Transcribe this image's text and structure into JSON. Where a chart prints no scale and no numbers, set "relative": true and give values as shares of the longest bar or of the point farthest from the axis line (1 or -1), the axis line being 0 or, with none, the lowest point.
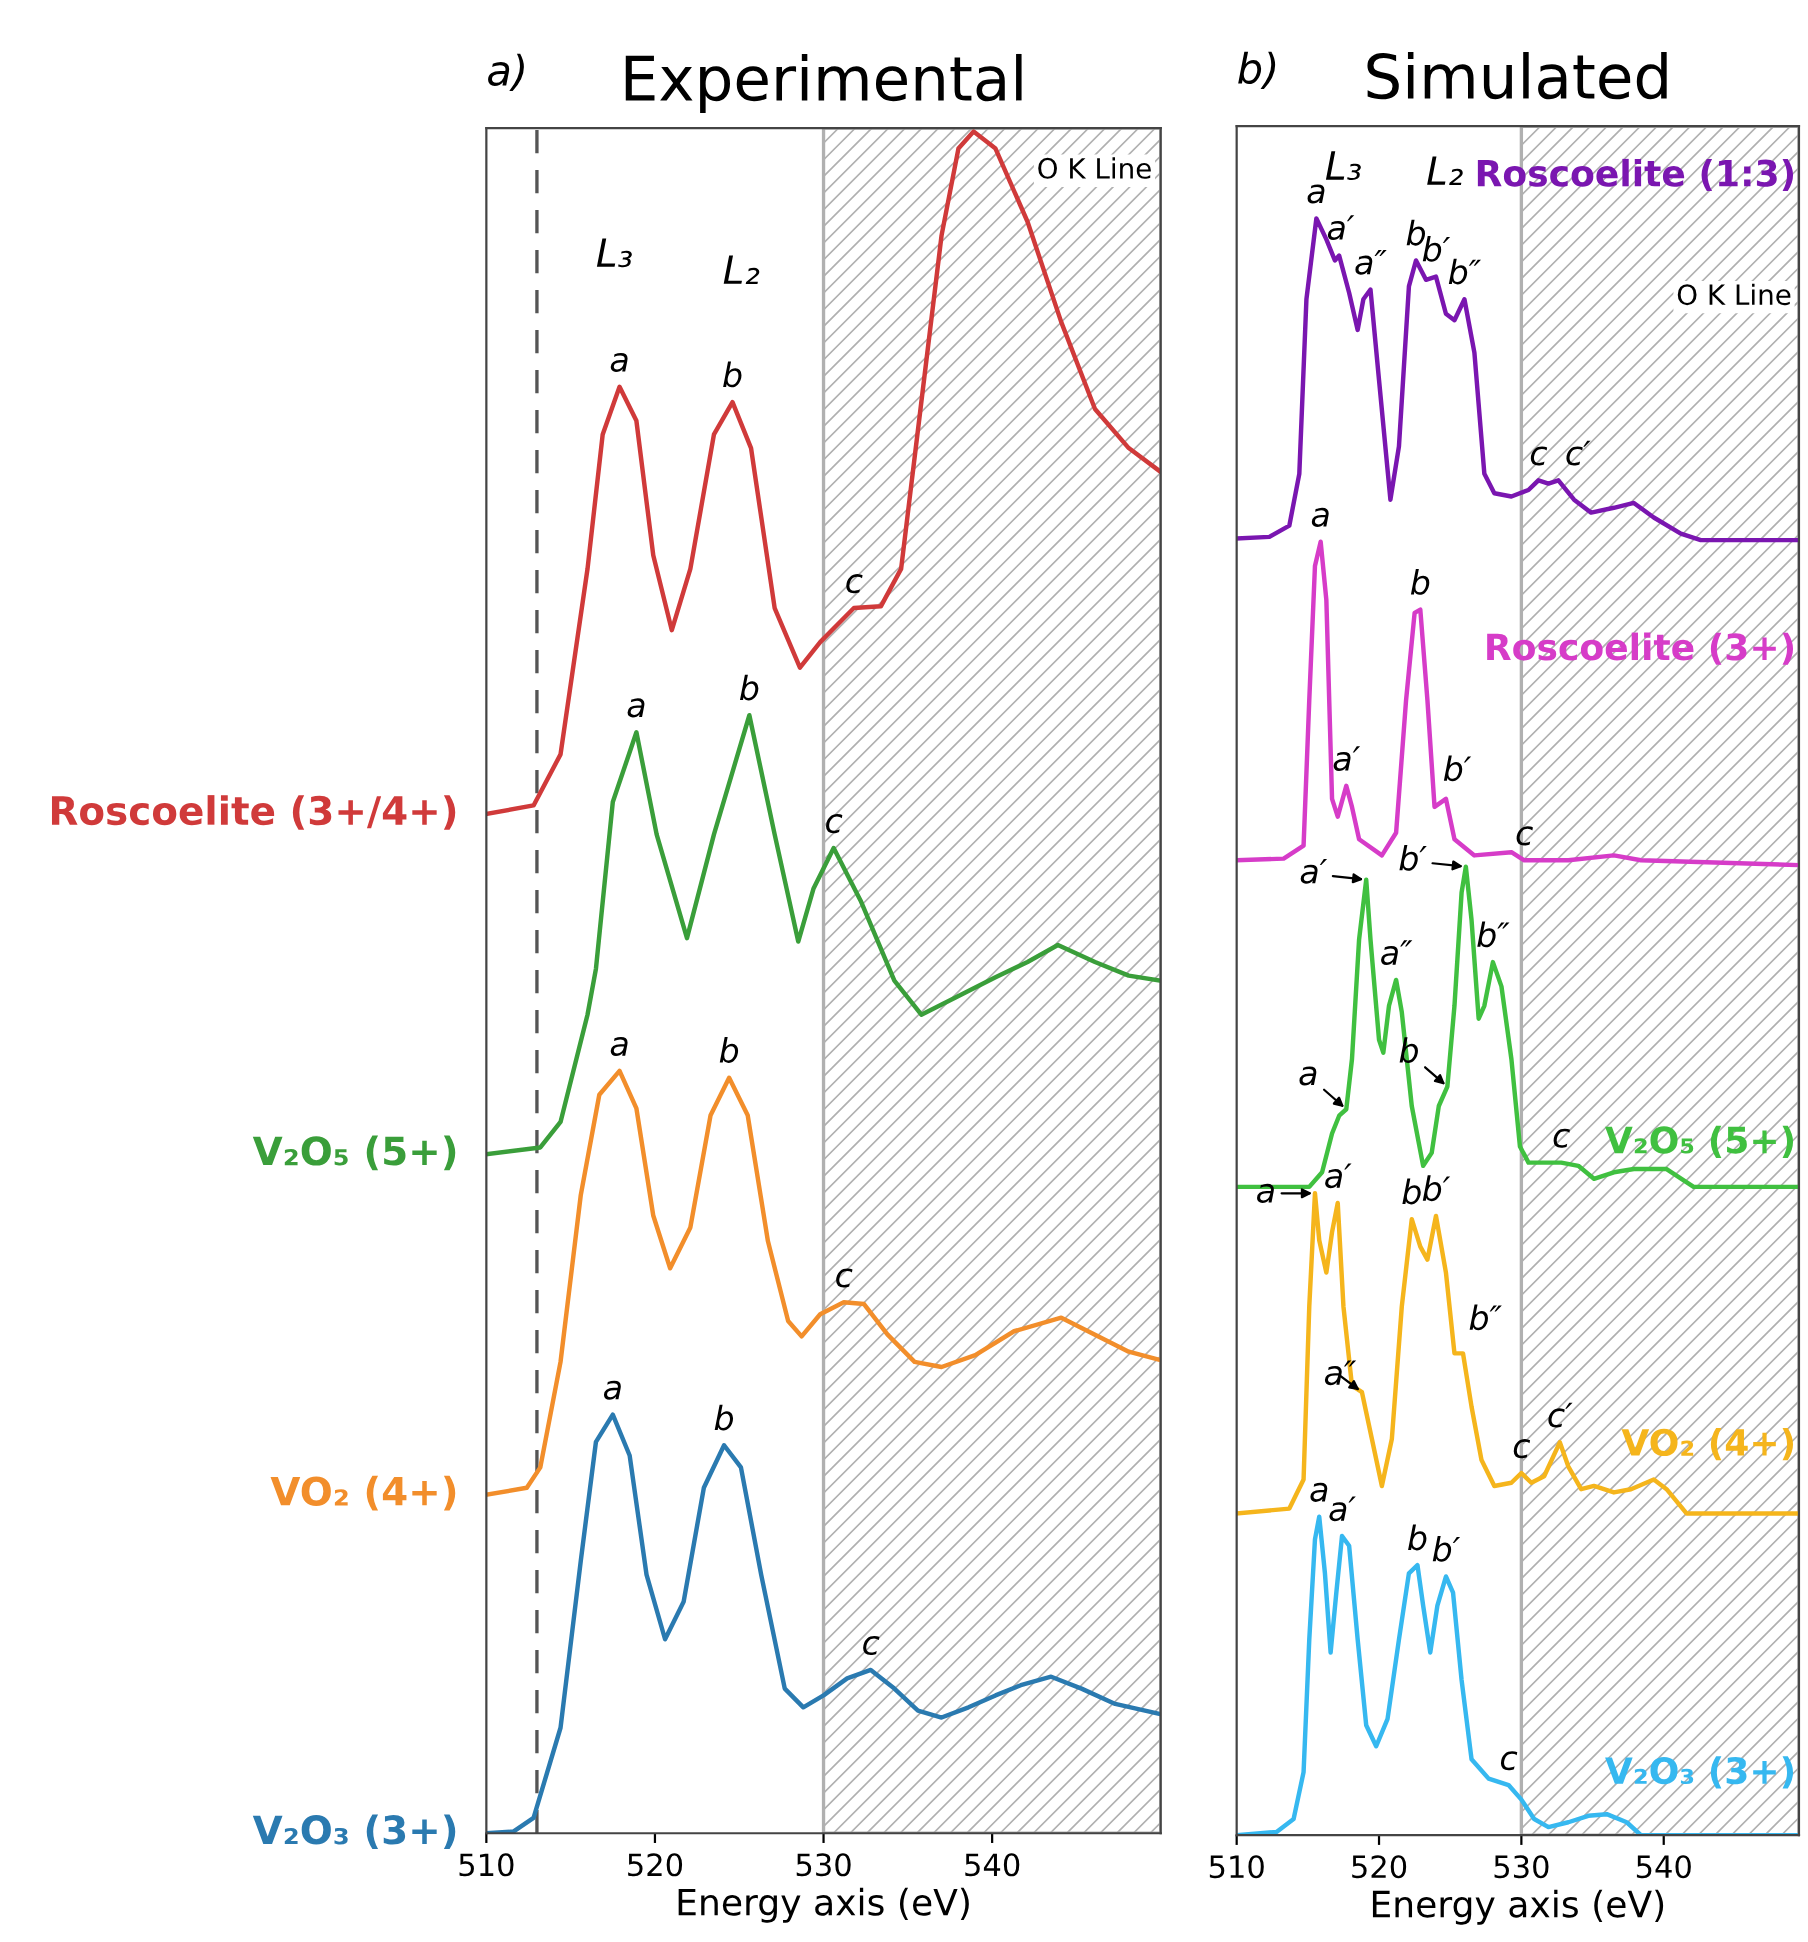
{
  "chart_data": [
    {
      "type": "line",
      "title": "Experimental",
      "xlabel": "Energy axis (eV)",
      "relative": true,
      "xlim": [
        510,
        550
      ],
      "xticks": [
        510,
        520,
        530,
        540
      ],
      "tick_labels": "x",
      "grid": false,
      "legend": false,
      "ref_lines": [
        {
          "axis": "x",
          "value": 513,
          "color": "#555555",
          "line_style": "dashed"
        }
      ],
      "bands": [
        {
          "axis": "x",
          "from": 530,
          "to": 550,
          "label": "O K Line",
          "color": "#b0b0b0"
        }
      ],
      "series": [
        {
          "name": "Roscoelite (3+/4+)",
          "color": "#d03a3a",
          "x": [
            510,
            512.8,
            514.4,
            516.0,
            516.9,
            517.9,
            518.9,
            519.9,
            521.0,
            522.1,
            523.5,
            524.6,
            525.7,
            527.1,
            528.6,
            529.8,
            531.8,
            533.4,
            534.6,
            535.8,
            537.0,
            538.0,
            538.9,
            540.2,
            542.1,
            544.1,
            546.1,
            548.1,
            550
          ],
          "values": [
            0.599,
            0.604,
            0.634,
            0.743,
            0.822,
            0.85,
            0.83,
            0.751,
            0.707,
            0.743,
            0.822,
            0.841,
            0.814,
            0.72,
            0.685,
            0.7,
            0.72,
            0.721,
            0.743,
            0.841,
            0.939,
            0.99,
            1.0,
            0.99,
            0.947,
            0.888,
            0.837,
            0.814,
            0.8
          ]
        },
        {
          "name": "V₂O₅ (5+)",
          "color": "#3a9e3a",
          "x": [
            510,
            513.2,
            514.4,
            516.0,
            516.5,
            517.5,
            518.9,
            520.1,
            521.9,
            523.5,
            525.6,
            527.1,
            528.5,
            529.4,
            530.6,
            532.2,
            534.2,
            535.8,
            537.8,
            540.2,
            542.1,
            543.9,
            546.1,
            548.1,
            550
          ],
          "values": [
            0.399,
            0.403,
            0.418,
            0.481,
            0.508,
            0.606,
            0.647,
            0.587,
            0.526,
            0.587,
            0.657,
            0.587,
            0.524,
            0.555,
            0.579,
            0.548,
            0.501,
            0.481,
            0.491,
            0.503,
            0.512,
            0.522,
            0.512,
            0.504,
            0.501
          ]
        },
        {
          "name": "VO₂ (4+)",
          "color": "#f28e2b",
          "x": [
            510,
            512.4,
            513.2,
            514.4,
            515.6,
            516.7,
            517.9,
            518.9,
            519.9,
            520.9,
            522.1,
            523.3,
            524.4,
            525.5,
            526.7,
            527.9,
            528.7,
            529.8,
            531.2,
            532.4,
            533.8,
            535.4,
            537.0,
            539.0,
            541.3,
            544.1,
            546.1,
            548.1,
            550
          ],
          "values": [
            0.199,
            0.203,
            0.215,
            0.277,
            0.375,
            0.434,
            0.448,
            0.426,
            0.363,
            0.332,
            0.356,
            0.422,
            0.444,
            0.422,
            0.348,
            0.301,
            0.292,
            0.305,
            0.312,
            0.311,
            0.293,
            0.277,
            0.274,
            0.281,
            0.295,
            0.303,
            0.293,
            0.283,
            0.278
          ]
        },
        {
          "name": "V₂O₃ (3+)",
          "color": "#2a7ab0",
          "x": [
            510,
            511.6,
            512.8,
            514.4,
            515.6,
            516.5,
            517.5,
            518.5,
            519.5,
            520.6,
            521.7,
            522.9,
            524.1,
            525.1,
            526.3,
            527.7,
            528.8,
            530.0,
            531.4,
            532.8,
            534.2,
            535.6,
            537.0,
            538.6,
            540.2,
            541.7,
            543.5,
            545.3,
            547.3,
            550
          ],
          "values": [
            0.0,
            0.001,
            0.009,
            0.062,
            0.16,
            0.23,
            0.246,
            0.222,
            0.152,
            0.114,
            0.136,
            0.203,
            0.228,
            0.215,
            0.152,
            0.085,
            0.074,
            0.081,
            0.091,
            0.096,
            0.085,
            0.072,
            0.068,
            0.074,
            0.081,
            0.087,
            0.092,
            0.085,
            0.076,
            0.07
          ]
        }
      ],
      "annotations": [
        "a)",
        "L₃",
        "L₂",
        {
          "text": "a",
          "x": 517.9,
          "y": 0.85
        },
        {
          "text": "b",
          "x": 524.6,
          "y": 0.841
        },
        {
          "text": "c",
          "x": 531.8,
          "y": 0.72
        },
        {
          "text": "a",
          "x": 518.9,
          "y": 0.647
        },
        {
          "text": "b",
          "x": 525.6,
          "y": 0.657
        },
        {
          "text": "c",
          "x": 530.6,
          "y": 0.579
        },
        {
          "text": "a",
          "x": 517.9,
          "y": 0.448
        },
        {
          "text": "b",
          "x": 524.4,
          "y": 0.444
        },
        {
          "text": "c",
          "x": 531.2,
          "y": 0.312
        },
        {
          "text": "a",
          "x": 517.5,
          "y": 0.246
        },
        {
          "text": "b",
          "x": 524.1,
          "y": 0.228
        },
        {
          "text": "c",
          "x": 532.8,
          "y": 0.096
        }
      ]
    },
    {
      "type": "line",
      "title": "Simulated",
      "xlabel": "Energy axis (eV)",
      "relative": true,
      "xlim": [
        510,
        549.5
      ],
      "xticks": [
        510,
        520,
        530,
        540
      ],
      "tick_labels": "x",
      "grid": false,
      "legend": false,
      "bands": [
        {
          "axis": "x",
          "from": 530,
          "to": 549.5,
          "label": "O K Line",
          "color": "#b0b0b0"
        }
      ],
      "series": [
        {
          "name": "Roscoelite (1:3)",
          "color": "#7a16b0",
          "x": [
            510,
            512.3,
            513.7,
            514.4,
            514.9,
            515.6,
            516.3,
            516.9,
            517.2,
            517.9,
            518.5,
            518.9,
            519.4,
            520.0,
            520.8,
            521.4,
            522.1,
            522.6,
            523.3,
            524.0,
            524.7,
            525.3,
            526.0,
            526.7,
            527.4,
            528.1,
            529.3,
            530.5,
            531.2,
            531.9,
            532.6,
            533.7,
            534.9,
            536.5,
            537.9,
            539.3,
            541.2,
            542.6,
            549.5
          ],
          "values": [
            0.802,
            0.803,
            0.81,
            0.842,
            0.95,
            1.0,
            0.987,
            0.974,
            0.977,
            0.954,
            0.931,
            0.95,
            0.956,
            0.9,
            0.826,
            0.859,
            0.958,
            0.974,
            0.962,
            0.964,
            0.941,
            0.937,
            0.95,
            0.917,
            0.842,
            0.83,
            0.828,
            0.832,
            0.838,
            0.836,
            0.838,
            0.826,
            0.818,
            0.821,
            0.824,
            0.815,
            0.805,
            0.801,
            0.801
          ]
        },
        {
          "name": "Roscoelite (3+)",
          "color": "#d63cc8",
          "x": [
            510,
            513.3,
            514.7,
            515.1,
            515.5,
            515.9,
            516.3,
            516.7,
            517.1,
            517.7,
            518.1,
            518.6,
            520.2,
            521.2,
            521.9,
            522.5,
            522.9,
            523.4,
            523.9,
            524.7,
            525.3,
            526.7,
            529.3,
            530.2,
            533.3,
            536.5,
            538.4,
            549.5
          ],
          "values": [
            0.603,
            0.604,
            0.612,
            0.702,
            0.785,
            0.8,
            0.764,
            0.641,
            0.63,
            0.649,
            0.636,
            0.616,
            0.606,
            0.62,
            0.702,
            0.756,
            0.758,
            0.702,
            0.636,
            0.641,
            0.616,
            0.606,
            0.608,
            0.603,
            0.603,
            0.606,
            0.603,
            0.6
          ]
        },
        {
          "name": "V₂O₅ (5+)",
          "color": "#40c040",
          "x": [
            510,
            515.1,
            516.0,
            516.7,
            517.2,
            517.7,
            518.1,
            518.6,
            519.1,
            519.4,
            520.0,
            520.3,
            520.7,
            521.2,
            521.6,
            522.3,
            523.1,
            523.7,
            524.2,
            524.8,
            525.3,
            525.8,
            526.1,
            526.5,
            527.0,
            527.4,
            528.0,
            528.6,
            529.3,
            529.9,
            530.5,
            532.8,
            534.0,
            535.1,
            536.5,
            537.9,
            540.2,
            542.1,
            549.5
          ],
          "values": [
            0.401,
            0.401,
            0.41,
            0.434,
            0.445,
            0.449,
            0.48,
            0.554,
            0.591,
            0.554,
            0.492,
            0.484,
            0.513,
            0.529,
            0.509,
            0.451,
            0.414,
            0.422,
            0.451,
            0.463,
            0.513,
            0.583,
            0.599,
            0.566,
            0.505,
            0.513,
            0.54,
            0.525,
            0.48,
            0.426,
            0.416,
            0.416,
            0.414,
            0.406,
            0.41,
            0.412,
            0.412,
            0.401,
            0.401
          ]
        },
        {
          "name": "VO₂ (4+)",
          "color": "#f5b51c",
          "x": [
            510,
            513.7,
            514.7,
            515.1,
            515.5,
            515.8,
            516.3,
            516.7,
            517.1,
            517.5,
            518.1,
            518.8,
            519.5,
            520.2,
            520.9,
            521.6,
            522.3,
            522.9,
            523.4,
            524.0,
            524.7,
            525.3,
            525.9,
            526.5,
            527.2,
            528.1,
            529.3,
            530.0,
            530.7,
            531.6,
            532.7,
            533.3,
            534.2,
            535.1,
            536.5,
            537.7,
            539.3,
            540.2,
            541.6,
            549.5
          ],
          "values": [
            0.199,
            0.202,
            0.22,
            0.327,
            0.397,
            0.368,
            0.348,
            0.373,
            0.391,
            0.327,
            0.278,
            0.274,
            0.245,
            0.216,
            0.245,
            0.327,
            0.381,
            0.364,
            0.356,
            0.383,
            0.348,
            0.298,
            0.298,
            0.265,
            0.232,
            0.216,
            0.218,
            0.224,
            0.218,
            0.222,
            0.243,
            0.228,
            0.214,
            0.216,
            0.212,
            0.214,
            0.22,
            0.214,
            0.199,
            0.199
          ]
        },
        {
          "name": "V₂O₃ (3+)",
          "color": "#36b8f0",
          "x": [
            510,
            512.8,
            514.0,
            514.7,
            515.1,
            515.5,
            515.8,
            516.2,
            516.6,
            517.0,
            517.4,
            517.9,
            518.5,
            519.1,
            519.8,
            520.6,
            521.4,
            522.1,
            522.7,
            523.1,
            523.6,
            524.1,
            524.7,
            525.2,
            525.8,
            526.5,
            527.7,
            529.1,
            530.0,
            530.9,
            531.9,
            533.3,
            534.7,
            536.0,
            537.4,
            538.4,
            549.5
          ],
          "values": [
            0.0,
            0.002,
            0.01,
            0.039,
            0.121,
            0.183,
            0.197,
            0.162,
            0.113,
            0.15,
            0.185,
            0.179,
            0.121,
            0.068,
            0.055,
            0.072,
            0.121,
            0.162,
            0.167,
            0.142,
            0.113,
            0.142,
            0.16,
            0.15,
            0.096,
            0.047,
            0.035,
            0.031,
            0.022,
            0.01,
            0.005,
            0.008,
            0.012,
            0.013,
            0.008,
            0.0,
            0.0
          ]
        }
      ],
      "annotations": [
        "b)",
        "L₃",
        "L₂",
        {
          "text": "a",
          "x": 515.6,
          "y": 1.0
        },
        {
          "text": "a′",
          "x": 516.9,
          "y": 0.974
        },
        {
          "text": "a″",
          "x": 519.4,
          "y": 0.956
        },
        {
          "text": "b",
          "x": 522.6,
          "y": 0.974
        },
        {
          "text": "b′",
          "x": 524.0,
          "y": 0.964
        },
        {
          "text": "b″",
          "x": 526.0,
          "y": 0.95
        },
        {
          "text": "c",
          "x": 531.2,
          "y": 0.838
        },
        {
          "text": "c′",
          "x": 532.6,
          "y": 0.838
        },
        {
          "text": "a",
          "x": 515.9,
          "y": 0.8
        },
        {
          "text": "b",
          "x": 522.9,
          "y": 0.758
        },
        {
          "text": "a′",
          "x": 517.7,
          "y": 0.649
        },
        {
          "text": "b′",
          "x": 524.7,
          "y": 0.641
        },
        {
          "text": "c",
          "x": 530.2,
          "y": 0.603
        },
        {
          "text": "a′",
          "x": 519.1,
          "y": 0.591
        },
        {
          "text": "b′",
          "x": 526.1,
          "y": 0.599
        },
        {
          "text": "a″",
          "x": 521.2,
          "y": 0.529
        },
        {
          "text": "b″",
          "x": 528.0,
          "y": 0.54
        },
        {
          "text": "a",
          "x": 517.7,
          "y": 0.449
        },
        {
          "text": "b",
          "x": 524.8,
          "y": 0.463
        },
        {
          "text": "c",
          "x": 532.8,
          "y": 0.416
        },
        {
          "text": "a",
          "x": 515.5,
          "y": 0.397
        },
        {
          "text": "a′",
          "x": 517.1,
          "y": 0.391
        },
        {
          "text": "a″",
          "x": 518.8,
          "y": 0.274
        },
        {
          "text": "b",
          "x": 522.3,
          "y": 0.381
        },
        {
          "text": "b′",
          "x": 524.0,
          "y": 0.383
        },
        {
          "text": "b″",
          "x": 525.9,
          "y": 0.298
        },
        {
          "text": "c",
          "x": 530.0,
          "y": 0.224
        },
        {
          "text": "c′",
          "x": 532.7,
          "y": 0.243
        },
        {
          "text": "a",
          "x": 515.8,
          "y": 0.197
        },
        {
          "text": "a′",
          "x": 517.4,
          "y": 0.185
        },
        {
          "text": "b",
          "x": 522.7,
          "y": 0.167
        },
        {
          "text": "b′",
          "x": 524.7,
          "y": 0.16
        },
        {
          "text": "c",
          "x": 529.1,
          "y": 0.031
        }
      ]
    }
  ]
}
